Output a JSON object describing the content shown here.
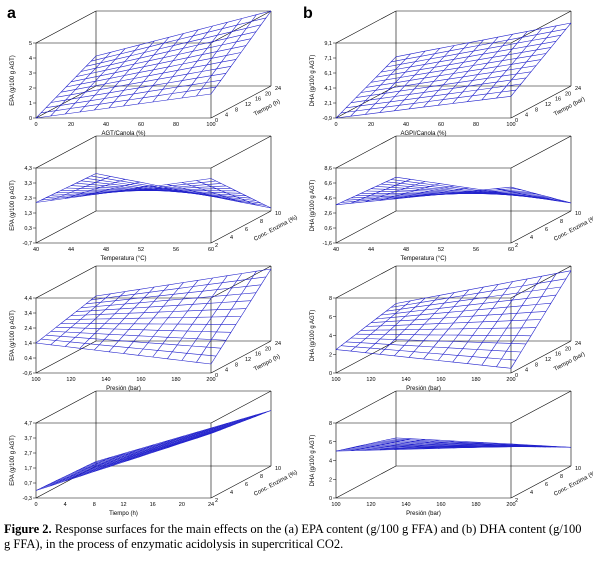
{
  "panel_letters": [
    "a",
    "b"
  ],
  "caption": {
    "label": "Figure 2.",
    "text": "Response surfaces for the main effects on the (a) EPA content (g/100 g FFA) and (b) DHA content (g/100 g FFA), in the process of enzymatic acidolysis in supercritical CO2."
  },
  "chart_data": [
    {
      "type": "surface",
      "title": "",
      "ylabel": "EPA (g/100 g AGT)",
      "x_title": "AGT/Canola (%)",
      "x_ticks": [
        "0",
        "20",
        "40",
        "60",
        "80",
        "100"
      ],
      "y_title": "Tiempo (h)",
      "y_ticks": [
        "0",
        "4",
        "8",
        "12",
        "16",
        "20",
        "24"
      ],
      "z_ticks": [
        "0",
        "1",
        "2",
        "3",
        "4",
        "5"
      ],
      "zlim": [
        0,
        5
      ],
      "surface": {
        "z_at_x0_y0": 0.0,
        "z_at_x1_y0": 1.6,
        "z_at_x0_y1": 2.0,
        "z_at_x1_y1": 5.0
      }
    },
    {
      "type": "surface",
      "title": "",
      "ylabel": "DHA (g/100 g AGT)",
      "x_title": "AGPI/Canola (%)",
      "x_ticks": [
        "0",
        "20",
        "40",
        "60",
        "80",
        "100"
      ],
      "y_title": "Tiempo (bar)",
      "y_ticks": [
        "0",
        "4",
        "8",
        "12",
        "16",
        "20",
        "24"
      ],
      "z_ticks": [
        "-0,9",
        "2,1",
        "4,1",
        "6,1",
        "7,1",
        "9,1"
      ],
      "zlim": [
        -0.9,
        9.1
      ],
      "surface": {
        "z_at_x0_y0": -0.9,
        "z_at_x1_y0": 2.0,
        "z_at_x0_y1": 3.0,
        "z_at_x1_y1": 7.5
      }
    },
    {
      "type": "surface",
      "title": "",
      "ylabel": "EPA (g/100 g AGT)",
      "x_title": "Temperatura (°C)",
      "x_ticks": [
        "40",
        "44",
        "48",
        "52",
        "56",
        "60"
      ],
      "y_title": "Conc. Enzima (%)",
      "y_ticks": [
        "2",
        "4",
        "6",
        "8",
        "10"
      ],
      "z_ticks": [
        "-0,7",
        "0,3",
        "1,3",
        "2,3",
        "3,3",
        "4,3"
      ],
      "zlim": [
        -0.7,
        4.3
      ],
      "surface": {
        "z_at_x0_y0": 2.0,
        "z_at_x1_y0": 3.6,
        "z_at_x0_y1": 1.8,
        "z_at_x1_y1": -0.5
      }
    },
    {
      "type": "surface",
      "title": "",
      "ylabel": "DHA (g/100 g AGT)",
      "x_title": "Temperatura (°C)",
      "x_ticks": [
        "40",
        "44",
        "48",
        "52",
        "56",
        "60"
      ],
      "y_title": "Conc. Enzima (%)",
      "y_ticks": [
        "2",
        "4",
        "6",
        "8",
        "10"
      ],
      "z_ticks": [
        "-1,6",
        "0,6",
        "2,6",
        "4,6",
        "6,6",
        "8,6"
      ],
      "zlim": [
        -1.6,
        8.6
      ],
      "surface": {
        "z_at_x0_y0": 3.6,
        "z_at_x1_y0": 6.0,
        "z_at_x0_y1": 3.0,
        "z_at_x1_y1": -0.5
      }
    },
    {
      "type": "surface",
      "title": "",
      "ylabel": "EPA (g/100 g AGT)",
      "x_title": "Presión (bar)",
      "x_ticks": [
        "100",
        "120",
        "140",
        "160",
        "180",
        "200"
      ],
      "y_title": "Tiempo (h)",
      "y_ticks": [
        "0",
        "4",
        "8",
        "12",
        "16",
        "20",
        "24"
      ],
      "z_ticks": [
        "-0,6",
        "0,4",
        "1,4",
        "2,4",
        "3,4",
        "4,4"
      ],
      "zlim": [
        -0.6,
        4.4
      ],
      "surface": {
        "z_at_x0_y0": 1.4,
        "z_at_x1_y0": 0.0,
        "z_at_x0_y1": 2.4,
        "z_at_x1_y1": 4.2
      }
    },
    {
      "type": "surface",
      "title": "",
      "ylabel": "DHA (g/100 g AGT)",
      "x_title": "Presión (bar)",
      "x_ticks": [
        "100",
        "120",
        "140",
        "160",
        "180",
        "200"
      ],
      "y_title": "Tiempo (bar)",
      "y_ticks": [
        "0",
        "4",
        "8",
        "12",
        "16",
        "20",
        "24"
      ],
      "z_ticks": [
        "0",
        "2",
        "4",
        "6",
        "8"
      ],
      "zlim": [
        0,
        8
      ],
      "surface": {
        "z_at_x0_y0": 2.5,
        "z_at_x1_y0": 0.5,
        "z_at_x0_y1": 4.0,
        "z_at_x1_y1": 7.5
      }
    },
    {
      "type": "surface",
      "title": "",
      "ylabel": "EPA (g/100 g AGT)",
      "x_title": "Tiempo (h)",
      "x_ticks": [
        "0",
        "4",
        "8",
        "12",
        "16",
        "20",
        "24"
      ],
      "y_title": "Conc. Enzima (%)",
      "y_ticks": [
        "2",
        "4",
        "6",
        "8",
        "10"
      ],
      "z_ticks": [
        "-0,3",
        "0,7",
        "1,7",
        "2,7",
        "3,7",
        "4,7"
      ],
      "zlim": [
        -0.3,
        4.7
      ],
      "surface": {
        "z_at_x0_y0": 0.2,
        "z_at_x1_y0": 4.0,
        "z_at_x0_y1": 0.0,
        "z_at_x1_y1": 3.4
      }
    },
    {
      "type": "surface",
      "title": "",
      "ylabel": "DHA (g/100 g AGT)",
      "x_title": "Presión (bar)",
      "x_ticks": [
        "100",
        "120",
        "140",
        "160",
        "180",
        "200"
      ],
      "y_title": "Conc. Enzima (%)",
      "y_ticks": [
        "2",
        "4",
        "6",
        "8",
        "10"
      ],
      "z_ticks": [
        "0",
        "2",
        "4",
        "6",
        "8"
      ],
      "zlim": [
        0,
        8
      ],
      "surface": {
        "z_at_x0_y0": 5.0,
        "z_at_x1_y0": 5.5,
        "z_at_x0_y1": 3.0,
        "z_at_x1_y1": 2.0
      }
    }
  ]
}
